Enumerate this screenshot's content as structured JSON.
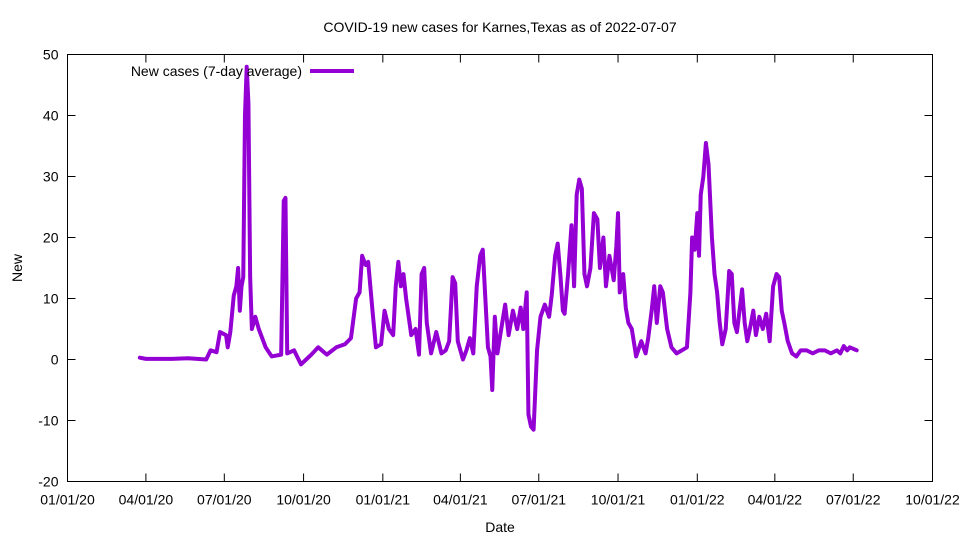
{
  "chart_data": {
    "type": "line",
    "title": "COVID-19 new cases for Karnes,Texas as of 2022-07-07",
    "xlabel": "Date",
    "ylabel": "New",
    "ylim": [
      -20,
      50
    ],
    "yticks": [
      "-20",
      "-10",
      "0",
      "10",
      "20",
      "30",
      "40",
      "50"
    ],
    "xlim": [
      "2020-01-01",
      "2022-10-01"
    ],
    "xticks": [
      {
        "date": "2020-01-01",
        "label": "01/01/20"
      },
      {
        "date": "2020-04-01",
        "label": "04/01/20"
      },
      {
        "date": "2020-07-01",
        "label": "07/01/20"
      },
      {
        "date": "2020-10-01",
        "label": "10/01/20"
      },
      {
        "date": "2021-01-01",
        "label": "01/01/21"
      },
      {
        "date": "2021-04-01",
        "label": "04/01/21"
      },
      {
        "date": "2021-07-01",
        "label": "07/01/21"
      },
      {
        "date": "2021-10-01",
        "label": "10/01/21"
      },
      {
        "date": "2022-01-01",
        "label": "01/01/22"
      },
      {
        "date": "2022-04-01",
        "label": "04/01/22"
      },
      {
        "date": "2022-07-01",
        "label": "07/01/22"
      },
      {
        "date": "2022-10-01",
        "label": "10/01/22"
      }
    ],
    "grid": false,
    "legend_position": "top-left",
    "series": [
      {
        "name": "New cases (7-day average)",
        "color": "#9400d3",
        "points": [
          [
            "2020-03-25",
            0.3
          ],
          [
            "2020-04-01",
            0.1
          ],
          [
            "2020-04-15",
            0.1
          ],
          [
            "2020-05-01",
            0.1
          ],
          [
            "2020-05-20",
            0.2
          ],
          [
            "2020-06-10",
            0.0
          ],
          [
            "2020-06-15",
            1.5
          ],
          [
            "2020-06-22",
            1.2
          ],
          [
            "2020-06-26",
            4.5
          ],
          [
            "2020-07-03",
            4.0
          ],
          [
            "2020-07-05",
            2.0
          ],
          [
            "2020-07-08",
            4.5
          ],
          [
            "2020-07-12",
            10.5
          ],
          [
            "2020-07-15",
            12.0
          ],
          [
            "2020-07-17",
            15.0
          ],
          [
            "2020-07-19",
            8.0
          ],
          [
            "2020-07-21",
            12.0
          ],
          [
            "2020-07-23",
            13.5
          ],
          [
            "2020-07-25",
            40.0
          ],
          [
            "2020-07-27",
            48.0
          ],
          [
            "2020-07-29",
            42.0
          ],
          [
            "2020-07-31",
            13.5
          ],
          [
            "2020-08-02",
            5.0
          ],
          [
            "2020-08-06",
            7.0
          ],
          [
            "2020-08-10",
            5.0
          ],
          [
            "2020-08-18",
            2.0
          ],
          [
            "2020-08-25",
            0.5
          ],
          [
            "2020-09-05",
            0.8
          ],
          [
            "2020-09-08",
            26.0
          ],
          [
            "2020-09-10",
            26.5
          ],
          [
            "2020-09-12",
            1.0
          ],
          [
            "2020-09-20",
            1.5
          ],
          [
            "2020-09-28",
            -0.8
          ],
          [
            "2020-10-10",
            0.8
          ],
          [
            "2020-10-18",
            2.0
          ],
          [
            "2020-10-28",
            0.8
          ],
          [
            "2020-11-08",
            2.0
          ],
          [
            "2020-11-18",
            2.5
          ],
          [
            "2020-11-25",
            3.5
          ],
          [
            "2020-12-01",
            10.0
          ],
          [
            "2020-12-05",
            11.0
          ],
          [
            "2020-12-08",
            17.0
          ],
          [
            "2020-12-12",
            15.5
          ],
          [
            "2020-12-15",
            16.0
          ],
          [
            "2020-12-20",
            8.0
          ],
          [
            "2020-12-24",
            2.0
          ],
          [
            "2020-12-30",
            2.5
          ],
          [
            "2021-01-03",
            8.0
          ],
          [
            "2021-01-08",
            5.0
          ],
          [
            "2021-01-13",
            4.0
          ],
          [
            "2021-01-16",
            12.0
          ],
          [
            "2021-01-19",
            16.0
          ],
          [
            "2021-01-22",
            12.0
          ],
          [
            "2021-01-25",
            14.0
          ],
          [
            "2021-01-28",
            10.0
          ],
          [
            "2021-02-03",
            4.0
          ],
          [
            "2021-02-08",
            5.0
          ],
          [
            "2021-02-12",
            0.8
          ],
          [
            "2021-02-15",
            14.0
          ],
          [
            "2021-02-18",
            15.0
          ],
          [
            "2021-02-21",
            6.0
          ],
          [
            "2021-02-26",
            1.0
          ],
          [
            "2021-03-04",
            4.5
          ],
          [
            "2021-03-10",
            1.0
          ],
          [
            "2021-03-15",
            1.5
          ],
          [
            "2021-03-19",
            3.0
          ],
          [
            "2021-03-23",
            13.5
          ],
          [
            "2021-03-26",
            12.5
          ],
          [
            "2021-03-29",
            3.0
          ],
          [
            "2021-04-04",
            0.0
          ],
          [
            "2021-04-08",
            1.5
          ],
          [
            "2021-04-12",
            3.5
          ],
          [
            "2021-04-16",
            1.0
          ],
          [
            "2021-04-20",
            12.0
          ],
          [
            "2021-04-24",
            17.0
          ],
          [
            "2021-04-27",
            18.0
          ],
          [
            "2021-04-30",
            10.0
          ],
          [
            "2021-05-03",
            2.0
          ],
          [
            "2021-05-06",
            0.5
          ],
          [
            "2021-05-08",
            -5.0
          ],
          [
            "2021-05-11",
            7.0
          ],
          [
            "2021-05-14",
            1.0
          ],
          [
            "2021-05-19",
            5.5
          ],
          [
            "2021-05-23",
            9.0
          ],
          [
            "2021-05-27",
            4.0
          ],
          [
            "2021-06-01",
            8.0
          ],
          [
            "2021-06-06",
            5.0
          ],
          [
            "2021-06-10",
            8.5
          ],
          [
            "2021-06-13",
            5.0
          ],
          [
            "2021-06-17",
            11.0
          ],
          [
            "2021-06-19",
            -9.0
          ],
          [
            "2021-06-22",
            -11.0
          ],
          [
            "2021-06-25",
            -11.5
          ],
          [
            "2021-06-29",
            1.5
          ],
          [
            "2021-07-03",
            7.0
          ],
          [
            "2021-07-08",
            9.0
          ],
          [
            "2021-07-13",
            7.0
          ],
          [
            "2021-07-16",
            10.5
          ],
          [
            "2021-07-20",
            17.0
          ],
          [
            "2021-07-23",
            19.0
          ],
          [
            "2021-07-26",
            14.0
          ],
          [
            "2021-07-29",
            8.0
          ],
          [
            "2021-07-31",
            7.5
          ],
          [
            "2021-08-04",
            14.0
          ],
          [
            "2021-08-08",
            22.0
          ],
          [
            "2021-08-11",
            12.0
          ],
          [
            "2021-08-14",
            27.0
          ],
          [
            "2021-08-17",
            29.5
          ],
          [
            "2021-08-20",
            28.0
          ],
          [
            "2021-08-23",
            14.0
          ],
          [
            "2021-08-26",
            12.0
          ],
          [
            "2021-08-30",
            15.0
          ],
          [
            "2021-09-03",
            24.0
          ],
          [
            "2021-09-07",
            23.0
          ],
          [
            "2021-09-10",
            15.0
          ],
          [
            "2021-09-14",
            20.0
          ],
          [
            "2021-09-17",
            12.0
          ],
          [
            "2021-09-21",
            17.0
          ],
          [
            "2021-09-26",
            13.0
          ],
          [
            "2021-09-29",
            18.5
          ],
          [
            "2021-10-01",
            24.0
          ],
          [
            "2021-10-03",
            11.0
          ],
          [
            "2021-10-07",
            14.0
          ],
          [
            "2021-10-10",
            8.5
          ],
          [
            "2021-10-13",
            6.0
          ],
          [
            "2021-10-17",
            5.0
          ],
          [
            "2021-10-22",
            0.5
          ],
          [
            "2021-10-28",
            3.0
          ],
          [
            "2021-11-02",
            1.0
          ],
          [
            "2021-11-05",
            3.5
          ],
          [
            "2021-11-09",
            8.0
          ],
          [
            "2021-11-12",
            12.0
          ],
          [
            "2021-11-15",
            6.0
          ],
          [
            "2021-11-19",
            12.0
          ],
          [
            "2021-11-22",
            11.0
          ],
          [
            "2021-11-27",
            5.0
          ],
          [
            "2021-12-02",
            2.0
          ],
          [
            "2021-12-08",
            1.0
          ],
          [
            "2021-12-14",
            1.5
          ],
          [
            "2021-12-20",
            2.0
          ],
          [
            "2021-12-24",
            11.0
          ],
          [
            "2021-12-26",
            20.0
          ],
          [
            "2021-12-29",
            18.0
          ],
          [
            "2022-01-01",
            24.0
          ],
          [
            "2022-01-03",
            17.0
          ],
          [
            "2022-01-05",
            27.0
          ],
          [
            "2022-01-08",
            30.0
          ],
          [
            "2022-01-11",
            35.5
          ],
          [
            "2022-01-14",
            32.0
          ],
          [
            "2022-01-18",
            20.0
          ],
          [
            "2022-01-21",
            14.0
          ],
          [
            "2022-01-24",
            11.0
          ],
          [
            "2022-01-27",
            6.0
          ],
          [
            "2022-01-30",
            2.5
          ],
          [
            "2022-02-03",
            5.0
          ],
          [
            "2022-02-07",
            14.5
          ],
          [
            "2022-02-10",
            14.0
          ],
          [
            "2022-02-13",
            6.0
          ],
          [
            "2022-02-16",
            4.5
          ],
          [
            "2022-02-19",
            8.0
          ],
          [
            "2022-02-22",
            11.5
          ],
          [
            "2022-02-25",
            6.0
          ],
          [
            "2022-02-28",
            3.0
          ],
          [
            "2022-03-03",
            5.0
          ],
          [
            "2022-03-07",
            8.0
          ],
          [
            "2022-03-10",
            4.0
          ],
          [
            "2022-03-14",
            7.0
          ],
          [
            "2022-03-18",
            5.0
          ],
          [
            "2022-03-22",
            7.5
          ],
          [
            "2022-03-26",
            3.0
          ],
          [
            "2022-03-30",
            12.0
          ],
          [
            "2022-04-03",
            14.0
          ],
          [
            "2022-04-06",
            13.5
          ],
          [
            "2022-04-09",
            8.0
          ],
          [
            "2022-04-12",
            6.0
          ],
          [
            "2022-04-16",
            3.0
          ],
          [
            "2022-04-21",
            1.0
          ],
          [
            "2022-04-26",
            0.5
          ],
          [
            "2022-05-01",
            1.5
          ],
          [
            "2022-05-08",
            1.5
          ],
          [
            "2022-05-15",
            1.0
          ],
          [
            "2022-05-22",
            1.5
          ],
          [
            "2022-05-29",
            1.5
          ],
          [
            "2022-06-05",
            1.0
          ],
          [
            "2022-06-12",
            1.5
          ],
          [
            "2022-06-16",
            1.0
          ],
          [
            "2022-06-20",
            2.2
          ],
          [
            "2022-06-24",
            1.5
          ],
          [
            "2022-06-27",
            2.0
          ],
          [
            "2022-07-05",
            1.5
          ]
        ]
      }
    ]
  }
}
